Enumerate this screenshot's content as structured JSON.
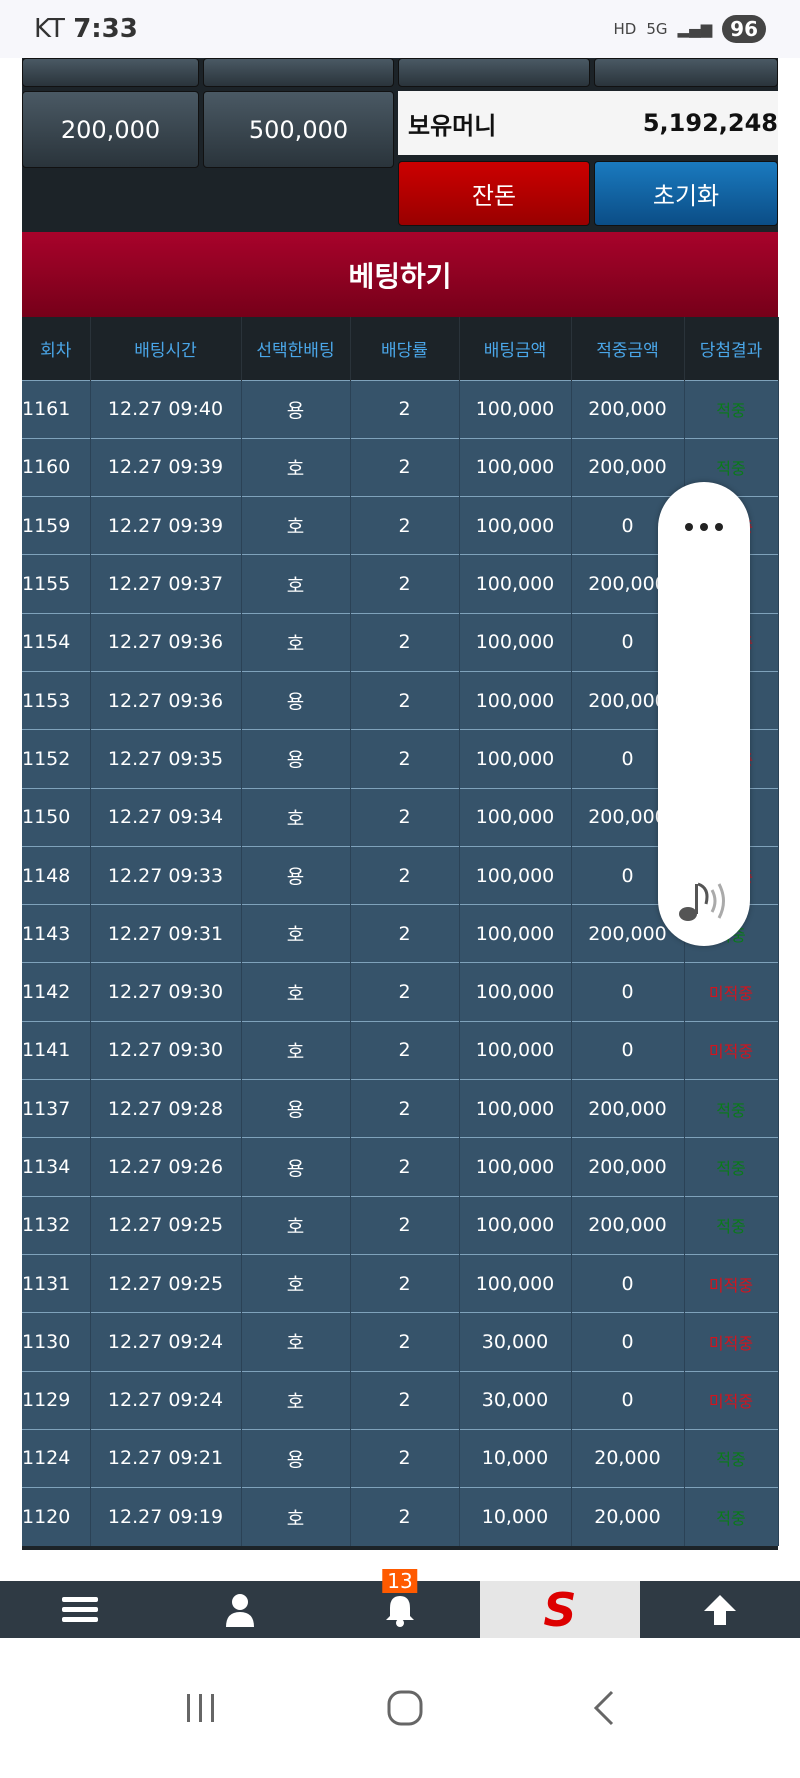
{
  "status": {
    "carrier": "KT",
    "time": "7:33",
    "icons": [
      "hd-icon",
      "5g-icon",
      "signal-icon"
    ],
    "battery": "96"
  },
  "buttons": {
    "amount1": "200,000",
    "amount2": "500,000",
    "balance_label": "보유머니",
    "balance_value": "5,192,248",
    "change": "잔돈",
    "reset": "초기화",
    "bet": "베팅하기"
  },
  "table": {
    "headers": [
      "회차",
      "배팅시간",
      "선택한배팅",
      "배당률",
      "배팅금액",
      "적중금액",
      "당첨결과"
    ],
    "rows": [
      [
        "1161",
        "12.27 09:40",
        "용",
        "2",
        "100,000",
        "200,000",
        "적중"
      ],
      [
        "1160",
        "12.27 09:39",
        "호",
        "2",
        "100,000",
        "200,000",
        "적중"
      ],
      [
        "1159",
        "12.27 09:39",
        "호",
        "2",
        "100,000",
        "0",
        "미적중"
      ],
      [
        "1155",
        "12.27 09:37",
        "호",
        "2",
        "100,000",
        "200,000",
        "적중"
      ],
      [
        "1154",
        "12.27 09:36",
        "호",
        "2",
        "100,000",
        "0",
        "미적중"
      ],
      [
        "1153",
        "12.27 09:36",
        "용",
        "2",
        "100,000",
        "200,000",
        "적중"
      ],
      [
        "1152",
        "12.27 09:35",
        "용",
        "2",
        "100,000",
        "0",
        "미적중"
      ],
      [
        "1150",
        "12.27 09:34",
        "호",
        "2",
        "100,000",
        "200,000",
        "적중"
      ],
      [
        "1148",
        "12.27 09:33",
        "용",
        "2",
        "100,000",
        "0",
        "미적중"
      ],
      [
        "1143",
        "12.27 09:31",
        "호",
        "2",
        "100,000",
        "200,000",
        "적중"
      ],
      [
        "1142",
        "12.27 09:30",
        "호",
        "2",
        "100,000",
        "0",
        "미적중"
      ],
      [
        "1141",
        "12.27 09:30",
        "호",
        "2",
        "100,000",
        "0",
        "미적중"
      ],
      [
        "1137",
        "12.27 09:28",
        "용",
        "2",
        "100,000",
        "200,000",
        "적중"
      ],
      [
        "1134",
        "12.27 09:26",
        "용",
        "2",
        "100,000",
        "200,000",
        "적중"
      ],
      [
        "1132",
        "12.27 09:25",
        "호",
        "2",
        "100,000",
        "200,000",
        "적중"
      ],
      [
        "1131",
        "12.27 09:25",
        "호",
        "2",
        "100,000",
        "0",
        "미적중"
      ],
      [
        "1130",
        "12.27 09:24",
        "호",
        "2",
        "30,000",
        "0",
        "미적중"
      ],
      [
        "1129",
        "12.27 09:24",
        "호",
        "2",
        "30,000",
        "0",
        "미적중"
      ],
      [
        "1124",
        "12.27 09:21",
        "용",
        "2",
        "10,000",
        "20,000",
        "적중"
      ],
      [
        "1120",
        "12.27 09:19",
        "호",
        "2",
        "10,000",
        "20,000",
        "적중"
      ]
    ]
  },
  "colors": {
    "win": "#0a7a1a",
    "lose": "#d2141e",
    "accent": "#a8032b"
  },
  "nav": {
    "badge": "13",
    "logo": "S"
  }
}
